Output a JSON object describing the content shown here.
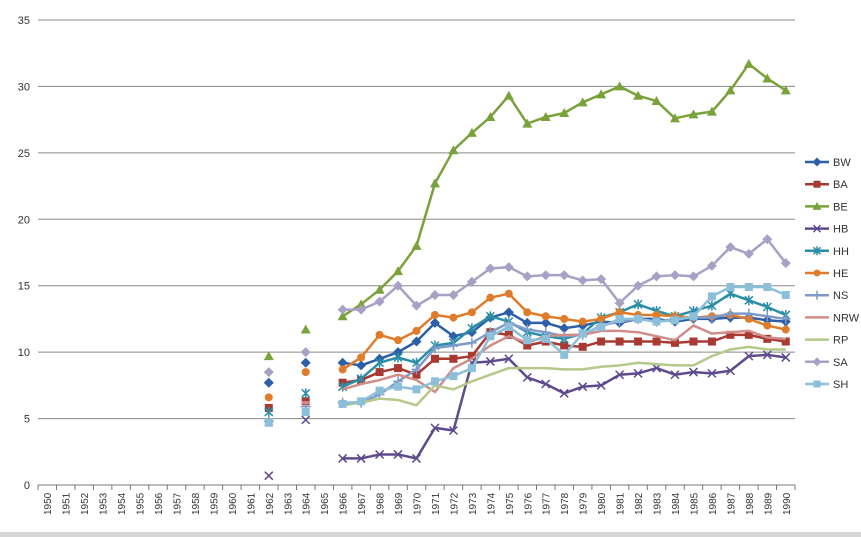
{
  "chart_data": {
    "type": "line",
    "title": "",
    "xlabel": "",
    "ylabel": "",
    "ylim": [
      0,
      35
    ],
    "yticks": [
      0,
      5,
      10,
      15,
      20,
      25,
      30,
      35
    ],
    "grid": true,
    "legend_position": "right",
    "categories": [
      "1950",
      "1951",
      "1952",
      "1953",
      "1954",
      "1955",
      "1956",
      "1957",
      "1958",
      "1959",
      "1960",
      "1961",
      "1962",
      "1963",
      "1964",
      "1965",
      "1966",
      "1967",
      "1968",
      "1969",
      "1970",
      "1971",
      "1972",
      "1973",
      "1974",
      "1975",
      "1976",
      "1977",
      "1978",
      "1979",
      "1980",
      "1981",
      "1982",
      "1983",
      "1984",
      "1985",
      "1986",
      "1987",
      "1988",
      "1989",
      "1990"
    ],
    "series": [
      {
        "name": "BW",
        "color": "#2c5fa8",
        "marker": "diamond",
        "values": [
          null,
          null,
          null,
          null,
          null,
          null,
          null,
          null,
          null,
          null,
          null,
          null,
          7.7,
          null,
          9.2,
          null,
          9.2,
          9.0,
          9.5,
          10.0,
          10.8,
          12.2,
          11.2,
          11.5,
          12.6,
          13.0,
          12.2,
          12.2,
          11.8,
          12.0,
          12.3,
          12.2,
          12.5,
          12.5,
          12.3,
          12.5,
          12.5,
          12.6,
          12.6,
          12.4,
          12.3
        ]
      },
      {
        "name": "BA",
        "color": "#a83a32",
        "marker": "square",
        "values": [
          null,
          null,
          null,
          null,
          null,
          null,
          null,
          null,
          null,
          null,
          null,
          null,
          5.8,
          null,
          6.3,
          null,
          7.7,
          7.9,
          8.5,
          8.8,
          8.3,
          9.5,
          9.5,
          9.7,
          11.5,
          11.3,
          10.5,
          10.8,
          10.5,
          10.4,
          10.8,
          10.8,
          10.8,
          10.8,
          10.7,
          10.8,
          10.8,
          11.3,
          11.3,
          11.0,
          10.8
        ]
      },
      {
        "name": "BE",
        "color": "#7aa23a",
        "marker": "triangle",
        "values": [
          null,
          null,
          null,
          null,
          null,
          null,
          null,
          null,
          null,
          null,
          null,
          null,
          9.7,
          null,
          11.7,
          null,
          12.7,
          13.6,
          14.7,
          16.1,
          18.0,
          22.7,
          25.2,
          26.5,
          27.7,
          29.3,
          27.2,
          27.7,
          28.0,
          28.8,
          29.4,
          30.0,
          29.3,
          28.9,
          27.6,
          27.9,
          28.1,
          29.7,
          31.7,
          30.6,
          29.7
        ]
      },
      {
        "name": "HB",
        "color": "#5e4a8c",
        "marker": "x",
        "values": [
          null,
          null,
          null,
          null,
          null,
          null,
          null,
          null,
          null,
          null,
          null,
          null,
          0.7,
          null,
          4.9,
          null,
          2.0,
          2.0,
          2.3,
          2.3,
          2.0,
          4.3,
          4.1,
          9.2,
          9.3,
          9.5,
          8.1,
          7.6,
          6.9,
          7.4,
          7.5,
          8.3,
          8.4,
          8.8,
          8.3,
          8.5,
          8.4,
          8.6,
          9.7,
          9.8,
          9.6
        ]
      },
      {
        "name": "HH",
        "color": "#2a8fa6",
        "marker": "asterisk",
        "values": [
          null,
          null,
          null,
          null,
          null,
          null,
          null,
          null,
          null,
          null,
          null,
          null,
          5.5,
          null,
          6.9,
          null,
          7.4,
          8.0,
          9.2,
          9.6,
          9.2,
          10.5,
          10.7,
          11.8,
          12.7,
          12.3,
          11.5,
          11.2,
          11.0,
          11.4,
          12.6,
          13.0,
          13.6,
          13.1,
          12.7,
          13.1,
          13.5,
          14.4,
          13.9,
          13.4,
          12.8
        ]
      },
      {
        "name": "HE",
        "color": "#e07b2a",
        "marker": "circle",
        "values": [
          null,
          null,
          null,
          null,
          null,
          null,
          null,
          null,
          null,
          null,
          null,
          null,
          6.6,
          null,
          8.5,
          null,
          8.7,
          9.6,
          11.3,
          10.9,
          11.6,
          12.8,
          12.6,
          13.0,
          14.1,
          14.4,
          13.0,
          12.7,
          12.5,
          12.3,
          12.5,
          13.0,
          12.8,
          12.8,
          12.7,
          12.6,
          12.7,
          12.8,
          12.5,
          12.0,
          11.7
        ]
      },
      {
        "name": "NS",
        "color": "#7f9bc9",
        "marker": "plus",
        "values": [
          null,
          null,
          null,
          null,
          null,
          null,
          null,
          null,
          null,
          null,
          null,
          null,
          4.8,
          null,
          5.9,
          null,
          6.2,
          6.2,
          6.8,
          7.8,
          8.7,
          10.3,
          10.5,
          10.7,
          11.5,
          12.2,
          11.7,
          11.5,
          11.2,
          11.3,
          12.0,
          12.3,
          12.5,
          12.3,
          12.5,
          12.6,
          12.6,
          12.9,
          12.9,
          12.7,
          12.5
        ]
      },
      {
        "name": "NRW",
        "color": "#d08c88",
        "marker": "none",
        "values": [
          null,
          null,
          null,
          null,
          null,
          null,
          null,
          null,
          null,
          null,
          null,
          null,
          4.5,
          null,
          6.2,
          null,
          7.2,
          7.6,
          7.9,
          8.3,
          7.9,
          7.0,
          8.8,
          9.5,
          10.5,
          11.2,
          10.7,
          11.2,
          11.3,
          11.3,
          11.6,
          11.6,
          11.5,
          11.2,
          10.9,
          12.0,
          11.4,
          11.5,
          11.6,
          11.1,
          11.0
        ]
      },
      {
        "name": "RP",
        "color": "#b5c98a",
        "marker": "none",
        "values": [
          null,
          null,
          null,
          null,
          null,
          null,
          null,
          null,
          null,
          null,
          null,
          null,
          null,
          null,
          null,
          null,
          6.0,
          6.2,
          6.5,
          6.4,
          6.0,
          7.5,
          7.2,
          7.8,
          8.3,
          8.8,
          8.8,
          8.8,
          8.7,
          8.7,
          8.9,
          9.0,
          9.2,
          9.1,
          9.0,
          9.0,
          9.7,
          10.2,
          10.4,
          10.2,
          10.2
        ]
      },
      {
        "name": "SA",
        "color": "#a9a0c6",
        "marker": "diamond",
        "values": [
          null,
          null,
          null,
          null,
          null,
          null,
          null,
          null,
          null,
          null,
          null,
          null,
          8.5,
          null,
          10.0,
          null,
          13.2,
          13.2,
          13.8,
          15.0,
          13.5,
          14.3,
          14.3,
          15.3,
          16.3,
          16.4,
          15.7,
          15.8,
          15.8,
          15.4,
          15.5,
          13.7,
          15.0,
          15.7,
          15.8,
          15.7,
          16.5,
          17.9,
          17.4,
          18.5,
          16.7
        ]
      },
      {
        "name": "SH",
        "color": "#8cbfda",
        "marker": "square",
        "values": [
          null,
          null,
          null,
          null,
          null,
          null,
          null,
          null,
          null,
          null,
          null,
          null,
          4.7,
          null,
          5.5,
          null,
          6.1,
          6.3,
          7.1,
          7.4,
          7.2,
          7.8,
          8.2,
          8.8,
          11.2,
          11.9,
          10.9,
          11.0,
          9.8,
          11.4,
          11.9,
          12.5,
          12.5,
          12.3,
          12.4,
          12.7,
          14.2,
          14.9,
          14.9,
          14.9,
          14.3
        ]
      }
    ]
  }
}
